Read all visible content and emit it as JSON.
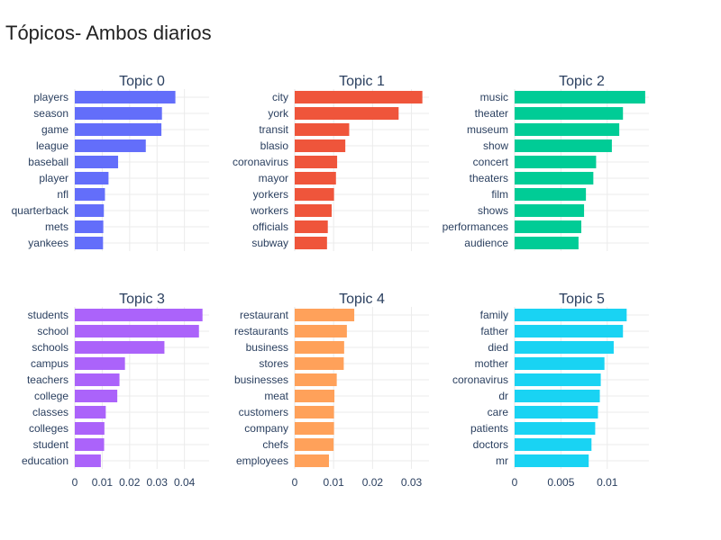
{
  "page": {
    "title": "Tópicos- Ambos diarios"
  },
  "chart_data": [
    {
      "type": "bar",
      "orientation": "horizontal",
      "title": "Topic 0",
      "color": "#636efa",
      "categories": [
        "players",
        "season",
        "game",
        "league",
        "baseball",
        "player",
        "nfl",
        "quarterback",
        "mets",
        "yankees"
      ],
      "values": [
        0.0367,
        0.0318,
        0.0316,
        0.0259,
        0.0158,
        0.0123,
        0.011,
        0.0106,
        0.0104,
        0.0103
      ],
      "xlim": [
        0,
        0.049
      ],
      "xticks": [],
      "xtick_labels": []
    },
    {
      "type": "bar",
      "orientation": "horizontal",
      "title": "Topic 1",
      "color": "#ef553b",
      "categories": [
        "city",
        "york",
        "transit",
        "blasio",
        "coronavirus",
        "mayor",
        "yorkers",
        "workers",
        "officials",
        "subway"
      ],
      "values": [
        0.0328,
        0.0267,
        0.014,
        0.013,
        0.0109,
        0.0106,
        0.0101,
        0.0095,
        0.0085,
        0.0083
      ],
      "xlim": [
        0,
        0.0345
      ],
      "xticks": [],
      "xtick_labels": []
    },
    {
      "type": "bar",
      "orientation": "horizontal",
      "title": "Topic 2",
      "color": "#00cc96",
      "categories": [
        "music",
        "theater",
        "museum",
        "show",
        "concert",
        "theaters",
        "film",
        "shows",
        "performances",
        "audience"
      ],
      "values": [
        0.0141,
        0.0117,
        0.0113,
        0.0105,
        0.0088,
        0.0085,
        0.0077,
        0.0075,
        0.0072,
        0.0069
      ],
      "xlim": [
        0,
        0.0145
      ],
      "xticks": [],
      "xtick_labels": []
    },
    {
      "type": "bar",
      "orientation": "horizontal",
      "title": "Topic 3",
      "color": "#ab63fa",
      "categories": [
        "students",
        "school",
        "schools",
        "campus",
        "teachers",
        "college",
        "classes",
        "colleges",
        "student",
        "education"
      ],
      "values": [
        0.0466,
        0.0453,
        0.0327,
        0.0183,
        0.0163,
        0.0155,
        0.0113,
        0.0108,
        0.0107,
        0.0095
      ],
      "xlim": [
        0,
        0.049
      ],
      "xticks": [
        0,
        0.01,
        0.02,
        0.03,
        0.04
      ],
      "xtick_labels": [
        "0",
        "0.01",
        "0.02",
        "0.03",
        "0.04"
      ]
    },
    {
      "type": "bar",
      "orientation": "horizontal",
      "title": "Topic 4",
      "color": "#ffa15a",
      "categories": [
        "restaurant",
        "restaurants",
        "business",
        "stores",
        "businesses",
        "meat",
        "customers",
        "company",
        "chefs",
        "employees"
      ],
      "values": [
        0.0153,
        0.0134,
        0.0127,
        0.0126,
        0.0108,
        0.0102,
        0.0101,
        0.0101,
        0.01,
        0.0088
      ],
      "xlim": [
        0,
        0.0345
      ],
      "xticks": [
        0,
        0.01,
        0.02,
        0.03
      ],
      "xtick_labels": [
        "0",
        "0.01",
        "0.02",
        "0.03"
      ]
    },
    {
      "type": "bar",
      "orientation": "horizontal",
      "title": "Topic 5",
      "color": "#19d3f3",
      "categories": [
        "family",
        "father",
        "died",
        "mother",
        "coronavirus",
        "dr",
        "care",
        "patients",
        "doctors",
        "mr"
      ],
      "values": [
        0.0121,
        0.0117,
        0.0107,
        0.0097,
        0.0093,
        0.0092,
        0.009,
        0.0087,
        0.0083,
        0.008
      ],
      "xlim": [
        0,
        0.0145
      ],
      "xticks": [
        0,
        0.005,
        0.01
      ],
      "xtick_labels": [
        "0",
        "0.005",
        "0.01"
      ]
    }
  ]
}
